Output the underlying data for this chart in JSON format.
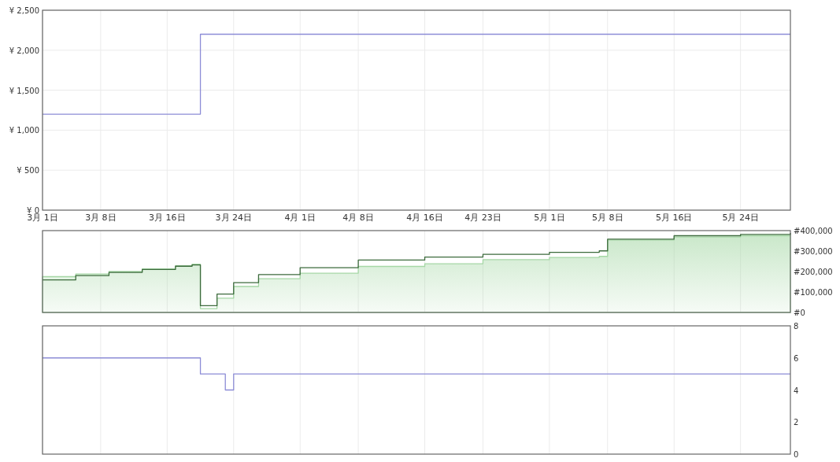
{
  "chart_data": [
    {
      "type": "step",
      "xlim": [
        "--03-01",
        "--05-30"
      ],
      "xticks": [
        {
          "value": "--03-01",
          "label": "3月 1日"
        },
        {
          "value": "--03-08",
          "label": "3月 8日"
        },
        {
          "value": "--03-16",
          "label": "3月 16日"
        },
        {
          "value": "--03-24",
          "label": "3月 24日"
        },
        {
          "value": "--04-01",
          "label": "4月 1日"
        },
        {
          "value": "--04-08",
          "label": "4月 8日"
        },
        {
          "value": "--04-16",
          "label": "4月 16日"
        },
        {
          "value": "--04-23",
          "label": "4月 23日"
        },
        {
          "value": "--05-01",
          "label": "5月 1日"
        },
        {
          "value": "--05-08",
          "label": "5月 8日"
        },
        {
          "value": "--05-16",
          "label": "5月 16日"
        },
        {
          "value": "--05-24",
          "label": "5月 24日"
        }
      ],
      "ylim": [
        0,
        2500
      ],
      "yticks": [
        {
          "value": 0,
          "label": "¥ 0"
        },
        {
          "value": 500,
          "label": "¥ 500"
        },
        {
          "value": 1000,
          "label": "¥ 1,000"
        },
        {
          "value": 1500,
          "label": "¥ 1,500"
        },
        {
          "value": 2000,
          "label": "¥ 2,000"
        },
        {
          "value": 2500,
          "label": "¥ 2,500"
        }
      ],
      "grid": true,
      "series": [
        {
          "color": "#8c8cd6",
          "x": [
            "--03-01",
            "--03-20",
            "--05-30"
          ],
          "values": [
            1200,
            2200,
            2200
          ]
        }
      ]
    },
    {
      "type": "step",
      "tick_labels": "y",
      "grid": "x",
      "xlim": [
        "--03-01",
        "--05-30"
      ],
      "xticks": [
        {
          "value": "--03-01",
          "label": null
        },
        {
          "value": "--03-08",
          "label": null
        },
        {
          "value": "--03-16",
          "label": null
        },
        {
          "value": "--03-24",
          "label": null
        },
        {
          "value": "--04-01",
          "label": null
        },
        {
          "value": "--04-08",
          "label": null
        },
        {
          "value": "--04-16",
          "label": null
        },
        {
          "value": "--04-23",
          "label": null
        },
        {
          "value": "--05-01",
          "label": null
        },
        {
          "value": "--05-08",
          "label": null
        },
        {
          "value": "--05-16",
          "label": null
        },
        {
          "value": "--05-24",
          "label": null
        }
      ],
      "y2lim": [
        0,
        400000
      ],
      "y2ticks": [
        {
          "value": 0,
          "label": "#0"
        },
        {
          "value": 100000,
          "label": "#100,000"
        },
        {
          "value": 200000,
          "label": "#200,000"
        },
        {
          "value": 300000,
          "label": "#300,000"
        },
        {
          "value": 400000,
          "label": "#400,000"
        }
      ],
      "series": [
        {
          "type": "area",
          "axis": "y2",
          "color": "#a6d8a6",
          "x": [
            "--03-01",
            "--03-05",
            "--03-09",
            "--03-13",
            "--03-17",
            "--03-19",
            "--03-20",
            "--03-22",
            "--03-24",
            "--03-27",
            "--04-01",
            "--04-08",
            "--04-16",
            "--04-23",
            "--05-01",
            "--05-07",
            "--05-08",
            "--05-16",
            "--05-24",
            "--05-30"
          ],
          "values": [
            175000,
            188000,
            200000,
            213000,
            228000,
            236000,
            19000,
            70000,
            127000,
            165000,
            192000,
            225000,
            238000,
            258000,
            269000,
            274000,
            354000,
            369000,
            375000,
            381000
          ]
        },
        {
          "axis": "y2",
          "color": "#3d6b3d",
          "x": [
            "--03-01",
            "--03-05",
            "--03-09",
            "--03-13",
            "--03-17",
            "--03-19",
            "--03-20",
            "--03-22",
            "--03-24",
            "--03-27",
            "--04-01",
            "--04-08",
            "--04-16",
            "--04-23",
            "--05-01",
            "--05-07",
            "--05-08",
            "--05-16",
            "--05-24",
            "--05-30"
          ],
          "values": [
            159000,
            180000,
            196000,
            210000,
            226000,
            232000,
            33000,
            90000,
            146000,
            185000,
            219000,
            256000,
            271000,
            284000,
            294000,
            301000,
            358000,
            375000,
            381000,
            388000
          ]
        }
      ]
    },
    {
      "type": "step",
      "tick_labels": "y",
      "grid": "x",
      "xlim": [
        "--03-01",
        "--05-30"
      ],
      "xticks": [
        {
          "value": "--03-01",
          "label": null
        },
        {
          "value": "--03-08",
          "label": null
        },
        {
          "value": "--03-16",
          "label": null
        },
        {
          "value": "--03-24",
          "label": null
        },
        {
          "value": "--04-01",
          "label": null
        },
        {
          "value": "--04-08",
          "label": null
        },
        {
          "value": "--04-16",
          "label": null
        },
        {
          "value": "--04-23",
          "label": null
        },
        {
          "value": "--05-01",
          "label": null
        },
        {
          "value": "--05-08",
          "label": null
        },
        {
          "value": "--05-16",
          "label": null
        },
        {
          "value": "--05-24",
          "label": null
        }
      ],
      "y2lim": [
        0,
        8
      ],
      "y2ticks": [
        0,
        2,
        4,
        6,
        8
      ],
      "series": [
        {
          "axis": "y2",
          "color": "#8c8cd6",
          "x": [
            "--03-01",
            "--03-20",
            "--03-23",
            "--03-24",
            "--05-30"
          ],
          "values": [
            6,
            5,
            4,
            5,
            5
          ]
        }
      ]
    }
  ]
}
